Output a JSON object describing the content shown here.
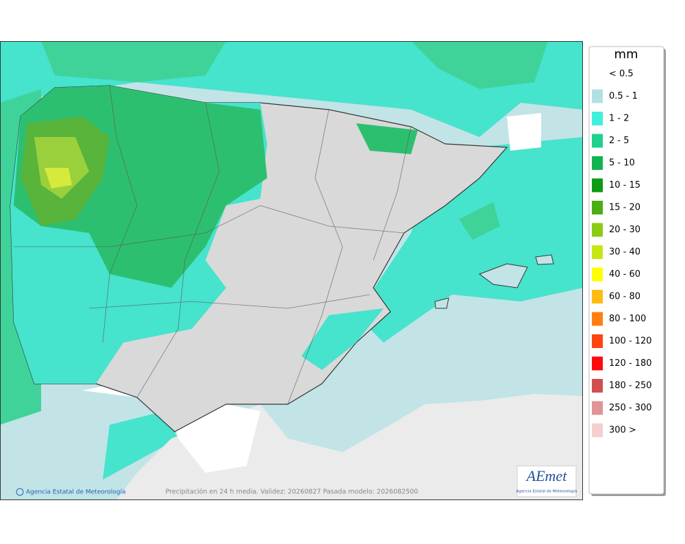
{
  "legend": {
    "title": "mm",
    "items": [
      {
        "label": "< 0.5"
      },
      {
        "label": "0.5 - 1",
        "color": "#b3e0e3"
      },
      {
        "label": "1 - 2",
        "color": "#3ff0dd"
      },
      {
        "label": "2 - 5",
        "color": "#1fd18c"
      },
      {
        "label": "5 - 10",
        "color": "#12b450"
      },
      {
        "label": "10 - 15",
        "color": "#0d9a14"
      },
      {
        "label": "15 - 20",
        "color": "#4aae14"
      },
      {
        "label": "20 - 30",
        "color": "#8ccc12"
      },
      {
        "label": "30 - 40",
        "color": "#c8e614"
      },
      {
        "label": "40 - 60",
        "color": "#ffff00"
      },
      {
        "label": "60 - 80",
        "color": "#ffbb12"
      },
      {
        "label": "80 - 100",
        "color": "#ff7e12"
      },
      {
        "label": "100 - 120",
        "color": "#ff4412"
      },
      {
        "label": "120 - 180",
        "color": "#ff0a0a"
      },
      {
        "label": "180 - 250",
        "color": "#d05050"
      },
      {
        "label": "250 - 300",
        "color": "#e09494"
      },
      {
        "label": "300 >",
        "color": "#f3cfcf"
      }
    ]
  },
  "footer": {
    "agency": "Agencia Estatal de Meteorología",
    "caption": "Precipitación en 24 h media. Validez: 20260827 Pasada modelo: 2026082500"
  },
  "logo": {
    "mark": "AEmet",
    "subtitle": "Agencia Estatal de Meteorología"
  }
}
